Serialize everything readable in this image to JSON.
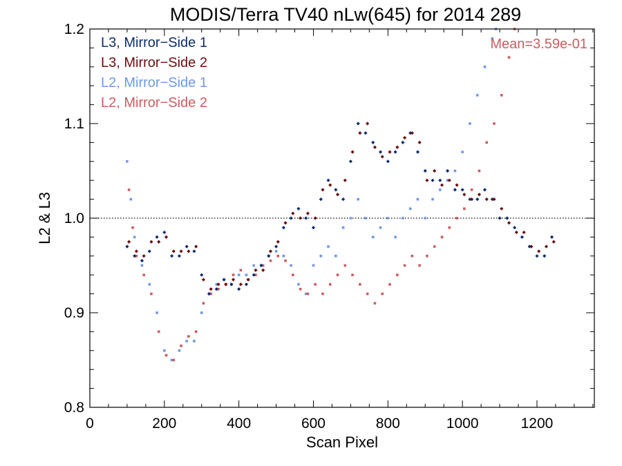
{
  "chart_data": {
    "type": "scatter",
    "title": "MODIS/Terra TV40 nLw(645) for 2014 289",
    "xlabel": "Scan Pixel",
    "ylabel": "L2 & L3",
    "xlim": [
      0,
      1354
    ],
    "ylim": [
      0.8,
      1.2
    ],
    "x_ticks": [
      "0",
      "200",
      "400",
      "600",
      "800",
      "1000",
      "1200"
    ],
    "y_ticks": [
      "0.8",
      "0.9",
      "1.0",
      "1.1",
      "1.2"
    ],
    "reference_line": 1.0,
    "annotation": "Mean=3.59e-01",
    "legend_position": "top-left",
    "series": [
      {
        "name": "L3, Mirror−Side 1",
        "color": "#0d2e6e",
        "marker": "diamond",
        "points": [
          [
            100,
            0.97
          ],
          [
            120,
            0.96
          ],
          [
            140,
            0.955
          ],
          [
            160,
            0.965
          ],
          [
            180,
            0.98
          ],
          [
            200,
            0.985
          ],
          [
            220,
            0.96
          ],
          [
            240,
            0.96
          ],
          [
            260,
            0.97
          ],
          [
            280,
            0.965
          ],
          [
            300,
            0.94
          ],
          [
            320,
            0.92
          ],
          [
            340,
            0.925
          ],
          [
            360,
            0.935
          ],
          [
            380,
            0.93
          ],
          [
            400,
            0.925
          ],
          [
            420,
            0.93
          ],
          [
            440,
            0.94
          ],
          [
            460,
            0.95
          ],
          [
            480,
            0.96
          ],
          [
            500,
            0.97
          ],
          [
            520,
            0.99
          ],
          [
            540,
            1.0
          ],
          [
            560,
            1.01
          ],
          [
            580,
            1.0
          ],
          [
            600,
            0.99
          ],
          [
            620,
            1.02
          ],
          [
            640,
            1.04
          ],
          [
            660,
            1.03
          ],
          [
            680,
            1.02
          ],
          [
            700,
            1.06
          ],
          [
            720,
            1.1
          ],
          [
            740,
            1.09
          ],
          [
            760,
            1.08
          ],
          [
            780,
            1.07
          ],
          [
            800,
            1.06
          ],
          [
            820,
            1.07
          ],
          [
            840,
            1.08
          ],
          [
            860,
            1.09
          ],
          [
            880,
            1.07
          ],
          [
            900,
            1.05
          ],
          [
            920,
            1.04
          ],
          [
            940,
            1.04
          ],
          [
            960,
            1.05
          ],
          [
            980,
            1.03
          ],
          [
            1000,
            1.03
          ],
          [
            1020,
            1.02
          ],
          [
            1040,
            1.02
          ],
          [
            1060,
            1.03
          ],
          [
            1080,
            1.02
          ],
          [
            1100,
            1.0
          ],
          [
            1120,
            1.0
          ],
          [
            1140,
            0.99
          ],
          [
            1160,
            0.98
          ],
          [
            1180,
            0.97
          ],
          [
            1200,
            0.96
          ],
          [
            1220,
            0.96
          ],
          [
            1240,
            0.98
          ]
        ]
      },
      {
        "name": "L3, Mirror−Side 2",
        "color": "#6e0d10",
        "marker": "diamond",
        "points": [
          [
            105,
            0.975
          ],
          [
            125,
            0.965
          ],
          [
            145,
            0.96
          ],
          [
            165,
            0.975
          ],
          [
            185,
            0.975
          ],
          [
            205,
            0.98
          ],
          [
            225,
            0.965
          ],
          [
            245,
            0.965
          ],
          [
            265,
            0.965
          ],
          [
            285,
            0.97
          ],
          [
            305,
            0.935
          ],
          [
            325,
            0.925
          ],
          [
            345,
            0.93
          ],
          [
            365,
            0.93
          ],
          [
            385,
            0.935
          ],
          [
            405,
            0.93
          ],
          [
            425,
            0.935
          ],
          [
            445,
            0.945
          ],
          [
            465,
            0.945
          ],
          [
            485,
            0.965
          ],
          [
            505,
            0.975
          ],
          [
            525,
            0.995
          ],
          [
            545,
            1.005
          ],
          [
            565,
            1.0
          ],
          [
            585,
            1.005
          ],
          [
            605,
            1.0
          ],
          [
            625,
            1.03
          ],
          [
            645,
            1.035
          ],
          [
            665,
            1.025
          ],
          [
            685,
            1.04
          ],
          [
            705,
            1.07
          ],
          [
            725,
            1.09
          ],
          [
            745,
            1.1
          ],
          [
            765,
            1.075
          ],
          [
            785,
            1.065
          ],
          [
            805,
            1.07
          ],
          [
            825,
            1.075
          ],
          [
            845,
            1.085
          ],
          [
            865,
            1.09
          ],
          [
            885,
            1.08
          ],
          [
            905,
            1.04
          ],
          [
            925,
            1.05
          ],
          [
            945,
            1.035
          ],
          [
            965,
            1.04
          ],
          [
            985,
            1.035
          ],
          [
            1005,
            1.025
          ],
          [
            1025,
            1.02
          ],
          [
            1045,
            1.025
          ],
          [
            1065,
            1.02
          ],
          [
            1085,
            1.02
          ],
          [
            1105,
            1.01
          ],
          [
            1125,
            0.995
          ],
          [
            1145,
            0.985
          ],
          [
            1165,
            0.985
          ],
          [
            1185,
            0.97
          ],
          [
            1205,
            0.965
          ],
          [
            1225,
            0.97
          ],
          [
            1245,
            0.975
          ]
        ]
      },
      {
        "name": "L2, Mirror−Side 1",
        "color": "#6e99e6",
        "marker": "square",
        "points": [
          [
            100,
            1.06
          ],
          [
            110,
            1.02
          ],
          [
            120,
            0.98
          ],
          [
            140,
            0.95
          ],
          [
            160,
            0.93
          ],
          [
            180,
            0.9
          ],
          [
            200,
            0.86
          ],
          [
            220,
            0.85
          ],
          [
            240,
            0.86
          ],
          [
            260,
            0.87
          ],
          [
            280,
            0.87
          ],
          [
            300,
            0.9
          ],
          [
            320,
            0.92
          ],
          [
            340,
            0.93
          ],
          [
            360,
            0.935
          ],
          [
            380,
            0.93
          ],
          [
            400,
            0.94
          ],
          [
            420,
            0.94
          ],
          [
            440,
            0.95
          ],
          [
            460,
            0.95
          ],
          [
            480,
            0.96
          ],
          [
            500,
            0.965
          ],
          [
            520,
            0.96
          ],
          [
            540,
            0.95
          ],
          [
            560,
            0.93
          ],
          [
            580,
            0.92
          ],
          [
            600,
            0.95
          ],
          [
            620,
            0.96
          ],
          [
            640,
            0.97
          ],
          [
            660,
            0.96
          ],
          [
            680,
            0.99
          ],
          [
            700,
            1.0
          ],
          [
            720,
            1.02
          ],
          [
            740,
            1.0
          ],
          [
            760,
            0.98
          ],
          [
            780,
            0.99
          ],
          [
            800,
            1.0
          ],
          [
            820,
            0.98
          ],
          [
            840,
            1.0
          ],
          [
            860,
            1.01
          ],
          [
            880,
            1.02
          ],
          [
            900,
            1.0
          ],
          [
            920,
            1.02
          ],
          [
            940,
            1.03
          ],
          [
            960,
            1.04
          ],
          [
            980,
            1.05
          ],
          [
            1000,
            1.07
          ],
          [
            1020,
            1.1
          ],
          [
            1040,
            1.13
          ],
          [
            1060,
            1.16
          ],
          [
            1080,
            1.19
          ],
          [
            1090,
            1.2
          ]
        ]
      },
      {
        "name": "L2, Mirror−Side 2",
        "color": "#cc5c5f",
        "marker": "square",
        "points": [
          [
            105,
            1.03
          ],
          [
            115,
            0.99
          ],
          [
            125,
            0.96
          ],
          [
            145,
            0.94
          ],
          [
            165,
            0.92
          ],
          [
            185,
            0.88
          ],
          [
            205,
            0.855
          ],
          [
            225,
            0.85
          ],
          [
            245,
            0.865
          ],
          [
            265,
            0.875
          ],
          [
            285,
            0.88
          ],
          [
            305,
            0.91
          ],
          [
            325,
            0.92
          ],
          [
            345,
            0.925
          ],
          [
            365,
            0.93
          ],
          [
            385,
            0.94
          ],
          [
            405,
            0.945
          ],
          [
            425,
            0.935
          ],
          [
            445,
            0.94
          ],
          [
            465,
            0.95
          ],
          [
            485,
            0.955
          ],
          [
            505,
            0.96
          ],
          [
            525,
            0.955
          ],
          [
            545,
            0.94
          ],
          [
            565,
            0.925
          ],
          [
            585,
            0.92
          ],
          [
            605,
            0.93
          ],
          [
            625,
            0.92
          ],
          [
            645,
            0.93
          ],
          [
            665,
            0.94
          ],
          [
            685,
            0.95
          ],
          [
            705,
            0.94
          ],
          [
            725,
            0.93
          ],
          [
            745,
            0.92
          ],
          [
            765,
            0.91
          ],
          [
            785,
            0.92
          ],
          [
            805,
            0.93
          ],
          [
            825,
            0.94
          ],
          [
            845,
            0.95
          ],
          [
            865,
            0.96
          ],
          [
            885,
            0.95
          ],
          [
            905,
            0.96
          ],
          [
            925,
            0.97
          ],
          [
            945,
            0.98
          ],
          [
            965,
            0.99
          ],
          [
            985,
            1.0
          ],
          [
            1005,
            1.01
          ],
          [
            1025,
            1.03
          ],
          [
            1045,
            1.05
          ],
          [
            1065,
            1.08
          ],
          [
            1085,
            1.1
          ],
          [
            1105,
            1.13
          ],
          [
            1125,
            1.17
          ],
          [
            1140,
            1.2
          ]
        ]
      }
    ]
  }
}
